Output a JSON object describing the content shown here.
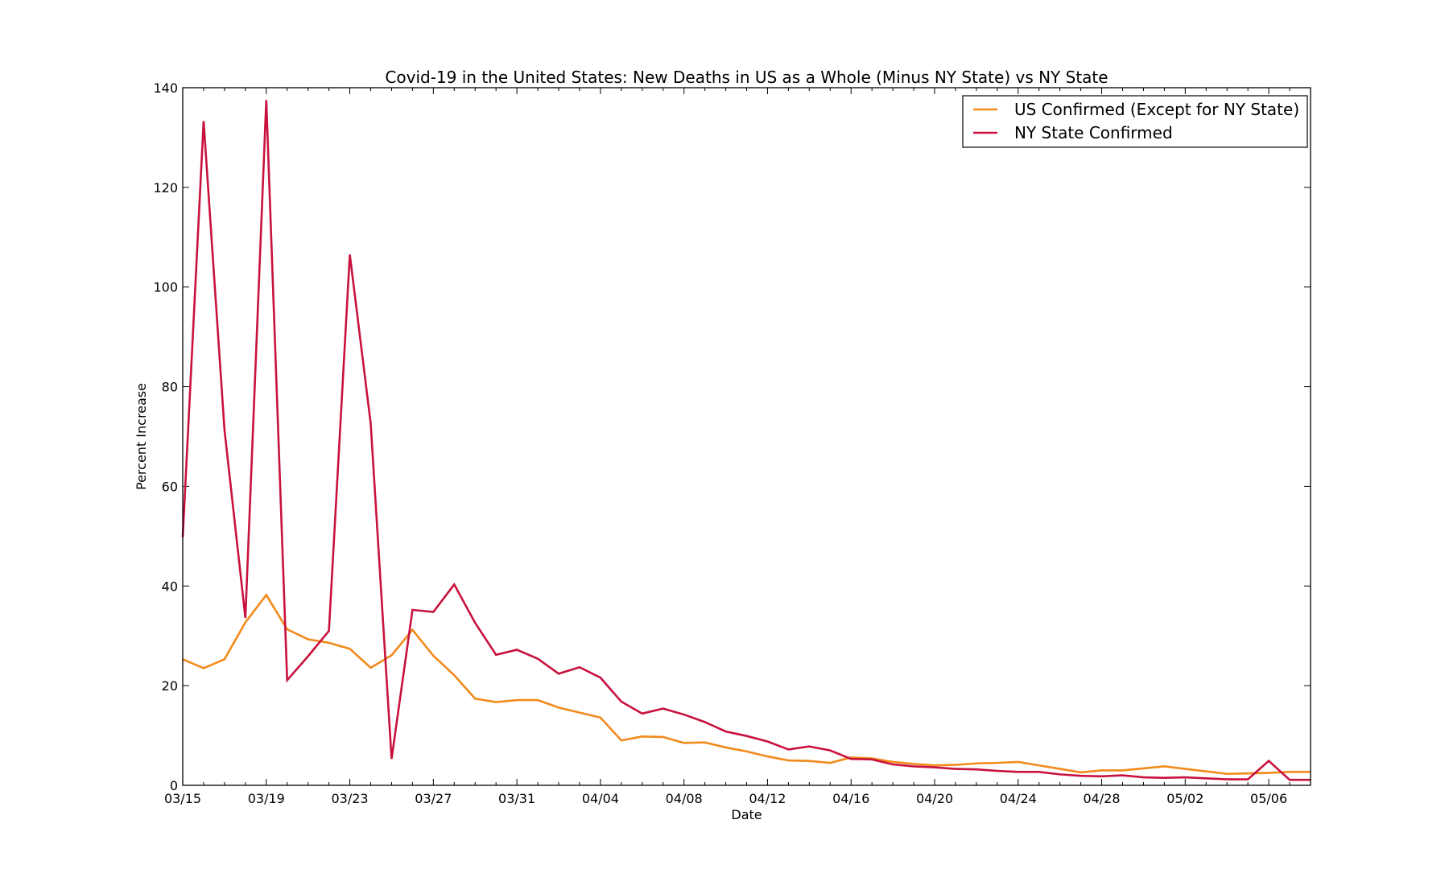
{
  "chart_data": {
    "type": "line",
    "title": "Covid-19 in the United States: New Deaths in US as a Whole (Minus NY State) vs NY State",
    "xlabel": "Date",
    "ylabel": "Percent Increase",
    "ylim": [
      0,
      140
    ],
    "yticks": [
      0,
      20,
      40,
      60,
      80,
      100,
      120,
      140
    ],
    "xlim": [
      "03/15",
      "05/08"
    ],
    "xtick_labels": [
      "03/15",
      "03/19",
      "03/23",
      "03/27",
      "03/31",
      "04/04",
      "04/08",
      "04/12",
      "04/16",
      "04/20",
      "04/24",
      "04/28",
      "05/02",
      "05/06"
    ],
    "grid": false,
    "legend_position": "top-right",
    "x": [
      "03/15",
      "03/16",
      "03/17",
      "03/18",
      "03/19",
      "03/20",
      "03/21",
      "03/22",
      "03/23",
      "03/24",
      "03/25",
      "03/26",
      "03/27",
      "03/28",
      "03/29",
      "03/30",
      "03/31",
      "04/01",
      "04/02",
      "04/03",
      "04/04",
      "04/05",
      "04/06",
      "04/07",
      "04/08",
      "04/09",
      "04/10",
      "04/11",
      "04/12",
      "04/13",
      "04/14",
      "04/15",
      "04/16",
      "04/17",
      "04/18",
      "04/19",
      "04/20",
      "04/21",
      "04/22",
      "04/23",
      "04/24",
      "04/25",
      "04/26",
      "04/27",
      "04/28",
      "04/29",
      "04/30",
      "05/01",
      "05/02",
      "05/03",
      "05/04",
      "05/05",
      "05/06",
      "05/07",
      "05/08"
    ],
    "series": [
      {
        "name": "US Confirmed (Except for NY State)",
        "color": "#f28a1c",
        "values": [
          25.3,
          23.5,
          25.3,
          32.7,
          38.2,
          31.3,
          29.3,
          28.6,
          27.4,
          23.6,
          26.1,
          31.2,
          26.0,
          22.1,
          17.4,
          16.7,
          17.1,
          17.1,
          15.6,
          14.6,
          13.6,
          9.0,
          9.8,
          9.7,
          8.5,
          8.6,
          7.6,
          6.8,
          5.8,
          5.0,
          4.9,
          4.5,
          5.6,
          5.4,
          4.7,
          4.3,
          4.0,
          4.1,
          4.4,
          4.5,
          4.7,
          4.0,
          3.3,
          2.6,
          3.0,
          3.0,
          3.4,
          3.8,
          3.3,
          2.8,
          2.3,
          2.4,
          2.5,
          2.7,
          2.7
        ]
      },
      {
        "name": "NY State Confirmed",
        "color": "#c8123e",
        "values": [
          49.8,
          133.3,
          71.3,
          33.6,
          137.5,
          21.1,
          25.9,
          31.0,
          106.5,
          72.6,
          5.3,
          35.2,
          34.8,
          40.3,
          32.6,
          26.2,
          27.2,
          25.4,
          22.4,
          23.7,
          21.6,
          16.8,
          14.4,
          15.4,
          14.2,
          12.7,
          10.8,
          9.9,
          8.8,
          7.2,
          7.8,
          7.0,
          5.3,
          5.2,
          4.2,
          3.8,
          3.6,
          3.3,
          3.2,
          2.9,
          2.7,
          2.7,
          2.2,
          1.9,
          1.8,
          2.0,
          1.6,
          1.5,
          1.6,
          1.4,
          1.2,
          1.2,
          4.9,
          1.1,
          1.1
        ]
      }
    ]
  }
}
